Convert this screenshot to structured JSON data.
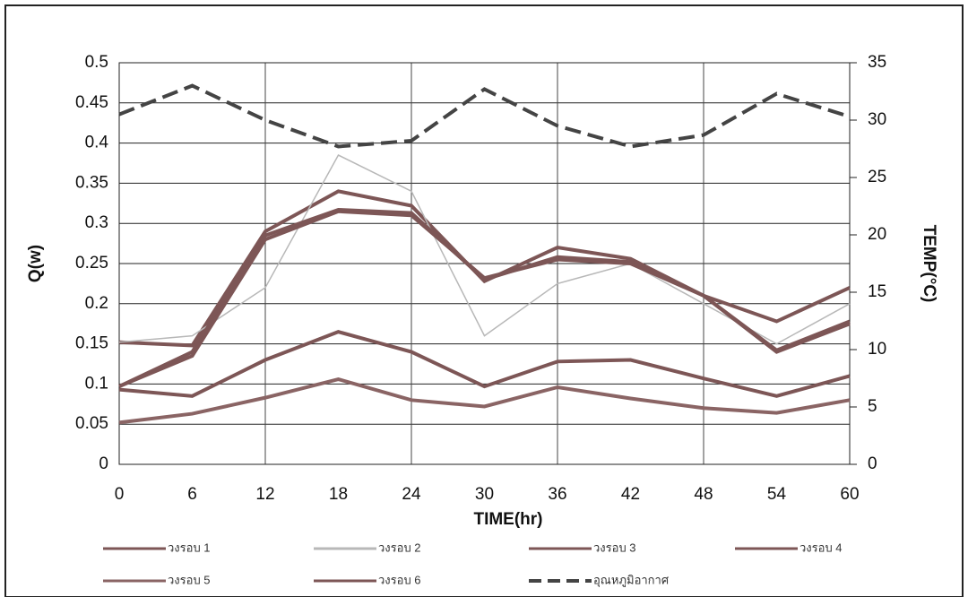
{
  "chart_data": {
    "type": "line",
    "x_label": "TIME(hr)",
    "y_label": "Q(w)",
    "y2_label": "TEMP(°C)",
    "x": [
      0,
      6,
      12,
      18,
      24,
      30,
      36,
      42,
      48,
      54,
      60
    ],
    "xlim": [
      0,
      60
    ],
    "xticks": [
      0,
      6,
      12,
      18,
      24,
      30,
      36,
      42,
      48,
      54,
      60
    ],
    "ylim": [
      0,
      0.5
    ],
    "yticks": [
      0,
      0.05,
      0.1,
      0.15,
      0.2,
      0.25,
      0.3,
      0.35,
      0.4,
      0.45,
      0.5
    ],
    "y2lim": [
      0,
      35
    ],
    "y2ticks": [
      0,
      5,
      10,
      15,
      20,
      25,
      30,
      35
    ],
    "grid": true,
    "series": [
      {
        "name": "วงรอบ 1",
        "color": "#7d5656",
        "values": [
          0.152,
          0.148,
          0.29,
          0.34,
          0.322,
          0.228,
          0.27,
          0.256,
          0.21,
          0.178,
          0.22
        ]
      },
      {
        "name": "วงรอบ 2",
        "color": "#b8b8b8",
        "values": [
          0.152,
          0.16,
          0.22,
          0.385,
          0.34,
          0.16,
          0.225,
          0.25,
          0.2,
          0.15,
          0.2
        ]
      },
      {
        "name": "วงรอบ 3",
        "color": "#7d5656",
        "values": [
          0.097,
          0.14,
          0.285,
          0.317,
          0.313,
          0.23,
          0.258,
          0.252,
          0.21,
          0.14,
          0.175
        ]
      },
      {
        "name": "วงรอบ 4",
        "color": "#7d5656",
        "values": [
          0.093,
          0.085,
          0.13,
          0.165,
          0.14,
          0.097,
          0.128,
          0.13,
          0.107,
          0.085,
          0.11
        ]
      },
      {
        "name": "วงรอบ 5",
        "color": "#8a6464",
        "values": [
          0.052,
          0.063,
          0.083,
          0.106,
          0.08,
          0.072,
          0.096,
          0.082,
          0.07,
          0.064,
          0.08
        ]
      },
      {
        "name": "วงรอบ 6",
        "color": "#7d5656",
        "values": [
          0.097,
          0.135,
          0.28,
          0.315,
          0.31,
          0.232,
          0.255,
          0.25,
          0.21,
          0.142,
          0.178
        ]
      },
      {
        "name": "อุณหภูมิอากาศ",
        "color": "#444444",
        "dashed": true,
        "axis": "y2",
        "values": [
          30.5,
          33,
          30,
          27.7,
          28.2,
          32.7,
          29.5,
          27.7,
          28.7,
          32.3,
          30.3
        ]
      }
    ]
  }
}
